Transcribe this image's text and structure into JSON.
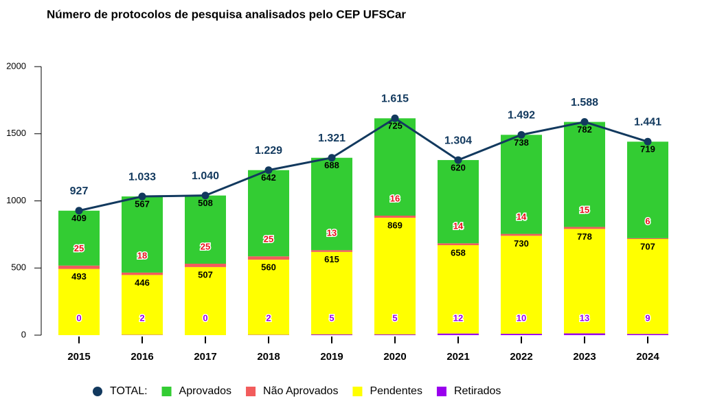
{
  "chart_data": {
    "type": "bar",
    "stacked": true,
    "title": "Número de protocolos de pesquisa analisados pelo CEP UFSCar",
    "categories": [
      "2015",
      "2016",
      "2017",
      "2018",
      "2019",
      "2020",
      "2021",
      "2022",
      "2023",
      "2024"
    ],
    "ylim": [
      0,
      2000
    ],
    "yticks": [
      0,
      500,
      1000,
      1500,
      2000
    ],
    "grid": false,
    "legend": "bottom",
    "series": [
      {
        "name": "TOTAL:",
        "type": "line",
        "color": "#12395e",
        "label_color": "#12395e",
        "values": [
          927,
          1033,
          1040,
          1229,
          1321,
          1615,
          1304,
          1492,
          1588,
          1441
        ],
        "value_labels": [
          "927",
          "1.033",
          "1.040",
          "1.229",
          "1.321",
          "1.615",
          "1.304",
          "1.492",
          "1.588",
          "1.441"
        ]
      },
      {
        "name": "Aprovados",
        "type": "bar",
        "color": "#33cc33",
        "label_color": "#000000",
        "values": [
          409,
          567,
          508,
          642,
          688,
          725,
          620,
          738,
          782,
          719
        ]
      },
      {
        "name": "Não Aprovados",
        "type": "bar",
        "color": "#f25c5c",
        "label_color": "#e8101a",
        "values": [
          25,
          18,
          25,
          25,
          13,
          16,
          14,
          14,
          15,
          6
        ]
      },
      {
        "name": "Pendentes",
        "type": "bar",
        "color": "#ffff00",
        "label_color": "#000000",
        "values": [
          493,
          446,
          507,
          560,
          615,
          869,
          658,
          730,
          778,
          707
        ]
      },
      {
        "name": "Retirados",
        "type": "bar",
        "color": "#9900ee",
        "label_color": "#9900ee",
        "values": [
          0,
          2,
          0,
          2,
          5,
          5,
          12,
          10,
          13,
          9
        ]
      }
    ]
  }
}
